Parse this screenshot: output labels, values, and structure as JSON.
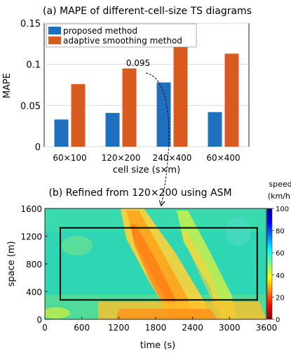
{
  "chart_data": [
    {
      "type": "bar",
      "title": "(a) MAPE of different-cell-size TS diagrams",
      "xlabel": "cell size (s×m)",
      "ylabel": "MAPE",
      "categories": [
        "60×100",
        "120×200",
        "240×400",
        "60×400"
      ],
      "series": [
        {
          "name": "proposed method",
          "color": "#1f6fbf",
          "values": [
            0.033,
            0.041,
            0.078,
            0.042
          ]
        },
        {
          "name": "adaptive smoothing method",
          "color": "#d85a1f",
          "values": [
            0.076,
            0.095,
            0.13,
            0.113
          ]
        }
      ],
      "ylim": [
        0,
        0.15
      ],
      "yticks": [
        "0",
        "0.05",
        "0.1",
        "0.15"
      ],
      "yticks_values": [
        0,
        0.05,
        0.1,
        0.15
      ],
      "annotation": "0.095",
      "legend_position": "top-left"
    },
    {
      "type": "heatmap",
      "title": "(b) Refined from 120×200 using ASM",
      "xlabel": "time (s)",
      "ylabel": "space (m)",
      "xlim": [
        0,
        3600
      ],
      "ylim": [
        0,
        1600
      ],
      "xticks": [
        "0",
        "600",
        "1200",
        "1800",
        "2400",
        "3000",
        "3600"
      ],
      "xticks_values": [
        0,
        600,
        1200,
        1800,
        2400,
        3000,
        3600
      ],
      "yticks": [
        "0",
        "400",
        "800",
        "1200",
        "1600"
      ],
      "yticks_values": [
        0,
        400,
        800,
        1200,
        1600
      ],
      "colorbar": {
        "label": [
          "speed",
          "(km/h)"
        ],
        "ticks": [
          "0",
          "20",
          "40",
          "60",
          "80",
          "100"
        ],
        "ticks_values": [
          0,
          20,
          40,
          60,
          80,
          100
        ],
        "range": [
          0,
          100
        ],
        "colormap": "jet"
      },
      "highlight_box": {
        "x": [
          250,
          3450
        ],
        "y": [
          280,
          1320
        ]
      }
    }
  ]
}
